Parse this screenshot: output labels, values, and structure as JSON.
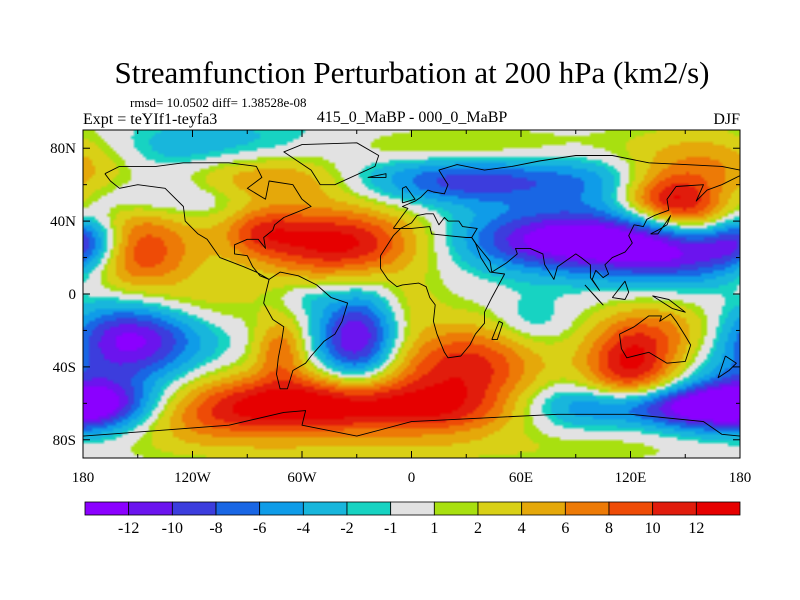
{
  "chart_data": {
    "type": "heatmap",
    "title": "Streamfunction Perturbation at 200 hPa (km2/s)",
    "stats_line": "rmsd= 10.0502 diff= 1.38528e-08",
    "left_label": "Expt = teYIf1-teyfa3",
    "center_label": "415_0_MaBP - 000_0_MaBP",
    "right_label": "DJF",
    "x_ticks": [
      "180",
      "120W",
      "60W",
      "0",
      "60E",
      "120E",
      "180"
    ],
    "x_tick_values": [
      -180,
      -120,
      -60,
      0,
      60,
      120,
      180
    ],
    "y_ticks": [
      "80N",
      "40N",
      "0",
      "40S",
      "80S"
    ],
    "y_tick_values": [
      80,
      40,
      0,
      -40,
      -80
    ],
    "xlim": [
      -180,
      180
    ],
    "ylim": [
      -90,
      90
    ],
    "colorbar": {
      "labels": [
        "-12",
        "-10",
        "-8",
        "-6",
        "-4",
        "-2",
        "-1",
        "1",
        "2",
        "4",
        "6",
        "8",
        "10",
        "12"
      ],
      "levels": [
        -12,
        -10,
        -8,
        -6,
        -4,
        -2,
        -1,
        1,
        2,
        4,
        6,
        8,
        10,
        12
      ],
      "colors": [
        "#8b00ff",
        "#6b14ee",
        "#3c3ddd",
        "#1966e4",
        "#0f9ce8",
        "#18b6dc",
        "#17d3c2",
        "#e2e2e2",
        "#a8e010",
        "#d9d016",
        "#e5a80a",
        "#ed7a06",
        "#ee4b06",
        "#e11c0c",
        "#e60000"
      ]
    },
    "anomalies": [
      {
        "lon": 165,
        "lat": 72,
        "amp": 8,
        "slon": 35,
        "slat": 14
      },
      {
        "lon": -120,
        "lat": 78,
        "amp": -5,
        "slon": 60,
        "slat": 12
      },
      {
        "lon": -160,
        "lat": 40,
        "amp": 5,
        "slon": 30,
        "slat": 12
      },
      {
        "lon": -145,
        "lat": 52,
        "amp": -4,
        "slon": 40,
        "slat": 8
      },
      {
        "lon": -95,
        "lat": 65,
        "amp": 6,
        "slon": 25,
        "slat": 10
      },
      {
        "lon": -60,
        "lat": 62,
        "amp": 4,
        "slon": 20,
        "slat": 10
      },
      {
        "lon": 30,
        "lat": 62,
        "amp": -9,
        "slon": 35,
        "slat": 9
      },
      {
        "lon": 15,
        "lat": 80,
        "amp": 3,
        "slon": 60,
        "slat": 8
      },
      {
        "lon": 100,
        "lat": 62,
        "amp": -5,
        "slon": 30,
        "slat": 10
      },
      {
        "lon": 140,
        "lat": 52,
        "amp": 11,
        "slon": 18,
        "slat": 10
      },
      {
        "lon": 160,
        "lat": 40,
        "amp": 6,
        "slon": 15,
        "slat": 10
      },
      {
        "lon": -155,
        "lat": 20,
        "amp": 11,
        "slon": 25,
        "slat": 13
      },
      {
        "lon": -175,
        "lat": 28,
        "amp": -6,
        "slon": 14,
        "slat": 12
      },
      {
        "lon": -40,
        "lat": 28,
        "amp": 13,
        "slon": 33,
        "slat": 14
      },
      {
        "lon": -82,
        "lat": 35,
        "amp": 6,
        "slon": 15,
        "slat": 10
      },
      {
        "lon": 85,
        "lat": 30,
        "amp": -14,
        "slon": 40,
        "slat": 12
      },
      {
        "lon": 150,
        "lat": 22,
        "amp": -10,
        "slon": 35,
        "slat": 12
      },
      {
        "lon": 175,
        "lat": 32,
        "amp": -7,
        "slon": 15,
        "slat": 10
      },
      {
        "lon": -120,
        "lat": -5,
        "amp": 3,
        "slon": 30,
        "slat": 10
      },
      {
        "lon": -155,
        "lat": -25,
        "amp": -13,
        "slon": 27,
        "slat": 15
      },
      {
        "lon": -30,
        "lat": -25,
        "amp": -13,
        "slon": 15,
        "slat": 17
      },
      {
        "lon": -72,
        "lat": -30,
        "amp": 7,
        "slon": 10,
        "slat": 12
      },
      {
        "lon": -58,
        "lat": -2,
        "amp": -2,
        "slon": 10,
        "slat": 6
      },
      {
        "lon": 30,
        "lat": -40,
        "amp": 11,
        "slon": 30,
        "slat": 17
      },
      {
        "lon": 0,
        "lat": -5,
        "amp": 2,
        "slon": 12,
        "slat": 10
      },
      {
        "lon": 65,
        "lat": -15,
        "amp": -3,
        "slon": 15,
        "slat": 10
      },
      {
        "lon": 120,
        "lat": -40,
        "amp": 12,
        "slon": 18,
        "slat": 17
      },
      {
        "lon": 145,
        "lat": -20,
        "amp": 5,
        "slon": 25,
        "slat": 12
      },
      {
        "lon": -65,
        "lat": -60,
        "amp": 13,
        "slon": 45,
        "slat": 12
      },
      {
        "lon": -175,
        "lat": -60,
        "amp": -11,
        "slon": 25,
        "slat": 12
      },
      {
        "lon": -120,
        "lat": -70,
        "amp": 4,
        "slon": 35,
        "slat": 10
      },
      {
        "lon": 10,
        "lat": -65,
        "amp": 7,
        "slon": 40,
        "slat": 10
      },
      {
        "lon": 80,
        "lat": -60,
        "amp": -3,
        "slon": 25,
        "slat": 10
      },
      {
        "lon": 145,
        "lat": -62,
        "amp": -12,
        "slon": 40,
        "slat": 8
      },
      {
        "lon": 0,
        "lat": -85,
        "amp": 2,
        "slon": 120,
        "slat": 6
      }
    ],
    "coastlines": [
      [
        [
          -168,
          66
        ],
        [
          -160,
          70
        ],
        [
          -140,
          70
        ],
        [
          -125,
          72
        ],
        [
          -100,
          72
        ],
        [
          -85,
          70
        ],
        [
          -82,
          64
        ],
        [
          -90,
          58
        ],
        [
          -80,
          52
        ],
        [
          -78,
          62
        ],
        [
          -65,
          60
        ],
        [
          -60,
          52
        ],
        [
          -55,
          48
        ],
        [
          -65,
          44
        ],
        [
          -70,
          42
        ],
        [
          -75,
          38
        ],
        [
          -76,
          35
        ],
        [
          -81,
          31
        ],
        [
          -80,
          25
        ],
        [
          -84,
          30
        ],
        [
          -90,
          30
        ],
        [
          -97,
          27
        ],
        [
          -97,
          22
        ],
        [
          -90,
          21
        ],
        [
          -87,
          15
        ],
        [
          -83,
          10
        ],
        [
          -78,
          8
        ],
        [
          -85,
          12
        ],
        [
          -92,
          15
        ],
        [
          -105,
          20
        ],
        [
          -112,
          30
        ],
        [
          -117,
          33
        ],
        [
          -124,
          40
        ],
        [
          -125,
          48
        ],
        [
          -135,
          58
        ],
        [
          -150,
          60
        ],
        [
          -160,
          58
        ],
        [
          -165,
          62
        ],
        [
          -168,
          66
        ]
      ],
      [
        [
          -78,
          8
        ],
        [
          -72,
          12
        ],
        [
          -62,
          10
        ],
        [
          -52,
          5
        ],
        [
          -44,
          -2
        ],
        [
          -35,
          -5
        ],
        [
          -38,
          -15
        ],
        [
          -42,
          -22
        ],
        [
          -48,
          -26
        ],
        [
          -55,
          -34
        ],
        [
          -58,
          -38
        ],
        [
          -65,
          -42
        ],
        [
          -68,
          -52
        ],
        [
          -72,
          -52
        ],
        [
          -74,
          -44
        ],
        [
          -73,
          -35
        ],
        [
          -71,
          -25
        ],
        [
          -70,
          -18
        ],
        [
          -76,
          -14
        ],
        [
          -81,
          -5
        ],
        [
          -80,
          0
        ],
        [
          -78,
          8
        ]
      ],
      [
        [
          -10,
          36
        ],
        [
          -5,
          43
        ],
        [
          -2,
          47
        ],
        [
          -5,
          48
        ],
        [
          2,
          51
        ],
        [
          5,
          53
        ],
        [
          9,
          57
        ],
        [
          12,
          56
        ],
        [
          18,
          55
        ],
        [
          20,
          60
        ],
        [
          15,
          68
        ],
        [
          25,
          71
        ],
        [
          40,
          68
        ],
        [
          55,
          70
        ],
        [
          70,
          73
        ],
        [
          90,
          76
        ],
        [
          110,
          76
        ],
        [
          130,
          72
        ],
        [
          150,
          71
        ],
        [
          170,
          70
        ],
        [
          180,
          68
        ],
        [
          180,
          65
        ],
        [
          170,
          60
        ],
        [
          162,
          57
        ],
        [
          156,
          51
        ],
        [
          160,
          60
        ],
        [
          145,
          59
        ],
        [
          140,
          52
        ],
        [
          141,
          46
        ],
        [
          133,
          43
        ],
        [
          129,
          41
        ],
        [
          127,
          37
        ],
        [
          122,
          38
        ],
        [
          119,
          32
        ],
        [
          121,
          28
        ],
        [
          117,
          23
        ],
        [
          110,
          20
        ],
        [
          106,
          16
        ],
        [
          108,
          11
        ],
        [
          105,
          9
        ],
        [
          101,
          13
        ],
        [
          99,
          8
        ],
        [
          103,
          2
        ],
        [
          98,
          9
        ],
        [
          98,
          16
        ],
        [
          93,
          20
        ],
        [
          90,
          22
        ],
        [
          80,
          15
        ],
        [
          78,
          8
        ],
        [
          73,
          16
        ],
        [
          72,
          22
        ],
        [
          65,
          25
        ],
        [
          57,
          25
        ],
        [
          58,
          22
        ],
        [
          52,
          17
        ],
        [
          44,
          12
        ],
        [
          43,
          18
        ],
        [
          35,
          28
        ],
        [
          33,
          31
        ],
        [
          36,
          36
        ],
        [
          28,
          37
        ],
        [
          26,
          40
        ],
        [
          20,
          40
        ],
        [
          18,
          42
        ],
        [
          15,
          38
        ],
        [
          12,
          44
        ],
        [
          8,
          44
        ],
        [
          3,
          43
        ],
        [
          0,
          39
        ],
        [
          -6,
          36
        ],
        [
          -10,
          36
        ]
      ],
      [
        [
          -17,
          21
        ],
        [
          -10,
          32
        ],
        [
          -6,
          36
        ],
        [
          0,
          36
        ],
        [
          10,
          37
        ],
        [
          11,
          33
        ],
        [
          20,
          32
        ],
        [
          30,
          31
        ],
        [
          33,
          31
        ],
        [
          35,
          28
        ],
        [
          38,
          20
        ],
        [
          43,
          12
        ],
        [
          51,
          11
        ],
        [
          44,
          -2
        ],
        [
          40,
          -10
        ],
        [
          40,
          -16
        ],
        [
          35,
          -22
        ],
        [
          32,
          -28
        ],
        [
          27,
          -34
        ],
        [
          20,
          -35
        ],
        [
          18,
          -32
        ],
        [
          14,
          -22
        ],
        [
          12,
          -15
        ],
        [
          13,
          -6
        ],
        [
          10,
          -2
        ],
        [
          8,
          4
        ],
        [
          4,
          6
        ],
        [
          -5,
          5
        ],
        [
          -8,
          4
        ],
        [
          -13,
          8
        ],
        [
          -17,
          14
        ],
        [
          -17,
          21
        ]
      ],
      [
        [
          114,
          -22
        ],
        [
          122,
          -18
        ],
        [
          130,
          -12
        ],
        [
          137,
          -12
        ],
        [
          136,
          -15
        ],
        [
          142,
          -11
        ],
        [
          145,
          -15
        ],
        [
          150,
          -23
        ],
        [
          153,
          -28
        ],
        [
          150,
          -37
        ],
        [
          140,
          -38
        ],
        [
          135,
          -35
        ],
        [
          130,
          -32
        ],
        [
          118,
          -35
        ],
        [
          115,
          -30
        ],
        [
          114,
          -22
        ]
      ],
      [
        [
          -180,
          -78
        ],
        [
          -140,
          -75
        ],
        [
          -100,
          -72
        ],
        [
          -70,
          -65
        ],
        [
          -58,
          -64
        ],
        [
          -60,
          -72
        ],
        [
          -30,
          -78
        ],
        [
          0,
          -70
        ],
        [
          40,
          -68
        ],
        [
          80,
          -66
        ],
        [
          120,
          -66
        ],
        [
          160,
          -70
        ],
        [
          170,
          -77
        ],
        [
          180,
          -78
        ]
      ],
      [
        [
          -50,
          60
        ],
        [
          -42,
          60
        ],
        [
          -20,
          70
        ],
        [
          -18,
          76
        ],
        [
          -30,
          83
        ],
        [
          -60,
          82
        ],
        [
          -70,
          78
        ],
        [
          -55,
          68
        ],
        [
          -50,
          60
        ]
      ],
      [
        [
          44,
          -25
        ],
        [
          48,
          -15
        ],
        [
          50,
          -16
        ],
        [
          47,
          -25
        ],
        [
          44,
          -25
        ]
      ],
      [
        [
          -5,
          50
        ],
        [
          -5,
          58
        ],
        [
          -3,
          59
        ],
        [
          2,
          52
        ],
        [
          -5,
          50
        ]
      ],
      [
        [
          131,
          33
        ],
        [
          135,
          35
        ],
        [
          140,
          38
        ],
        [
          142,
          43
        ],
        [
          140,
          40
        ],
        [
          135,
          33
        ],
        [
          131,
          33
        ]
      ],
      [
        [
          95,
          5
        ],
        [
          105,
          -6
        ],
        [
          103,
          -4
        ],
        [
          95,
          5
        ]
      ],
      [
        [
          132,
          -1
        ],
        [
          141,
          -3
        ],
        [
          150,
          -10
        ],
        [
          143,
          -8
        ],
        [
          132,
          -1
        ]
      ],
      [
        [
          110,
          -2
        ],
        [
          117,
          7
        ],
        [
          119,
          1
        ],
        [
          117,
          -3
        ],
        [
          110,
          -2
        ]
      ],
      [
        [
          172,
          -34
        ],
        [
          178,
          -38
        ],
        [
          174,
          -42
        ],
        [
          168,
          -46
        ],
        [
          172,
          -34
        ]
      ],
      [
        [
          -24,
          64
        ],
        [
          -14,
          66
        ],
        [
          -14,
          64
        ],
        [
          -24,
          64
        ]
      ]
    ]
  }
}
